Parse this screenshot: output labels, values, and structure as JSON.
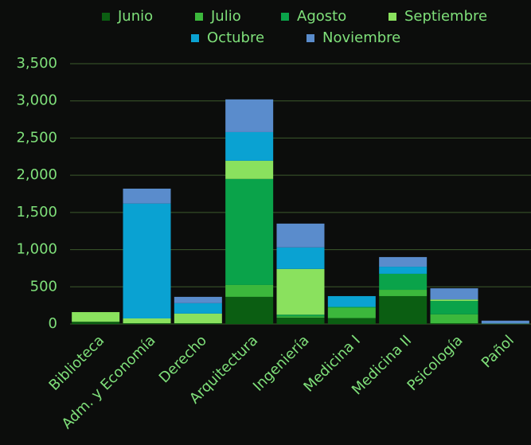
{
  "chart_data": {
    "type": "bar",
    "stacked": true,
    "categories": [
      "Biblioteca",
      "Adm. y Economía",
      "Derecho",
      "Arquitectura",
      "Ingeniería",
      "Medicina I",
      "Medicina II",
      "Psicología",
      "Pañol"
    ],
    "series": [
      {
        "name": "Junio",
        "color": "#0b5e12",
        "values": [
          30,
          10,
          10,
          365,
          85,
          80,
          375,
          10,
          5
        ]
      },
      {
        "name": "Julio",
        "color": "#3cb83c",
        "values": [
          0,
          0,
          0,
          160,
          20,
          140,
          85,
          120,
          0
        ]
      },
      {
        "name": "Agosto",
        "color": "#0aa34a",
        "values": [
          0,
          0,
          0,
          1425,
          20,
          10,
          215,
          180,
          0
        ]
      },
      {
        "name": "Septiembre",
        "color": "#8ae15e",
        "values": [
          130,
          65,
          130,
          245,
          615,
          0,
          0,
          20,
          0
        ]
      },
      {
        "name": "Octubre",
        "color": "#0aa2d2",
        "values": [
          0,
          1545,
          140,
          385,
          290,
          145,
          95,
          0,
          0
        ]
      },
      {
        "name": "Noviembre",
        "color": "#5a8ccc",
        "values": [
          0,
          200,
          85,
          440,
          320,
          0,
          130,
          150,
          40
        ]
      }
    ],
    "ylim": [
      0,
      3500
    ],
    "yticks": [
      0,
      500,
      {
        "value": 1000,
        "label": "1,000"
      },
      {
        "value": 1500,
        "label": "1,500"
      },
      {
        "value": 2000,
        "label": "2,000"
      },
      {
        "value": 2500,
        "label": "2,500"
      },
      {
        "value": 3000,
        "label": "3,000"
      },
      {
        "value": 3500,
        "label": "3,500"
      }
    ],
    "grid": true
  }
}
